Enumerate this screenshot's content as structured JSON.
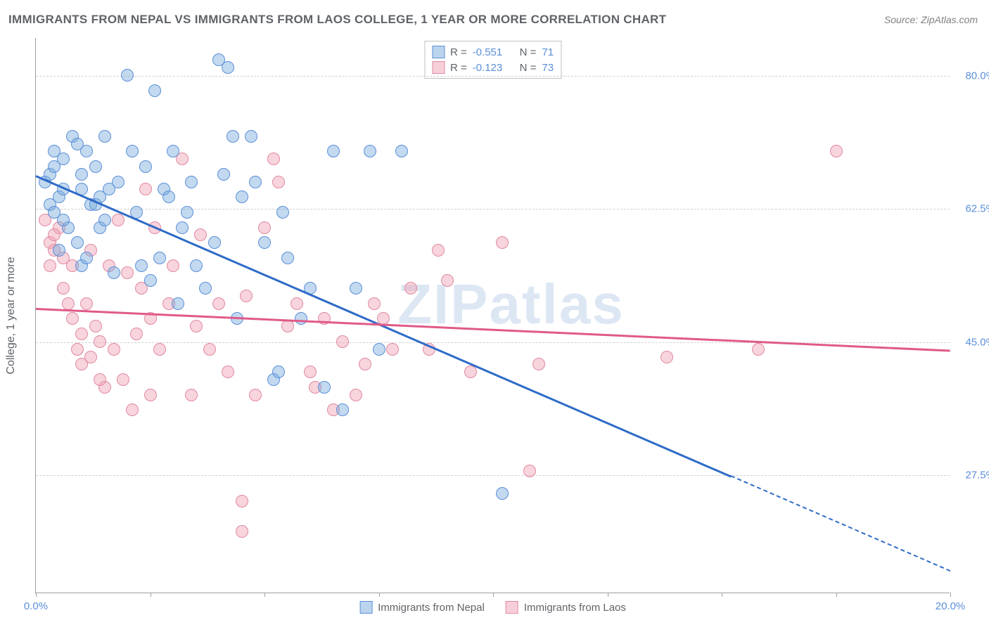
{
  "title": "IMMIGRANTS FROM NEPAL VS IMMIGRANTS FROM LAOS COLLEGE, 1 YEAR OR MORE CORRELATION CHART",
  "source": "Source: ZipAtlas.com",
  "watermark": "ZIPatlas",
  "chart": {
    "type": "scatter",
    "background_color": "#ffffff",
    "grid_color": "#d0d0d0",
    "axis_color": "#9aa0a6",
    "y_axis_title": "College, 1 year or more",
    "xlim": [
      0,
      20
    ],
    "ylim": [
      12,
      85
    ],
    "x_ticks": [
      0,
      2.5,
      5,
      7.5,
      10,
      12.5,
      15,
      17.5,
      20
    ],
    "x_tick_labels": {
      "0": "0.0%",
      "20": "20.0%"
    },
    "y_gridlines": [
      27.5,
      45.0,
      62.5,
      80.0
    ],
    "y_tick_labels": {
      "27.5": "27.5%",
      "45.0": "45.0%",
      "62.5": "62.5%",
      "80.0": "80.0%"
    },
    "marker_radius": 9,
    "series": {
      "nepal": {
        "label": "Immigrants from Nepal",
        "fill_color": "rgba(120,170,220,0.45)",
        "stroke_color": "#5b8fd9",
        "trend_color": "#2e6bc7",
        "R": "-0.551",
        "N": "71",
        "trend": {
          "x1": 0,
          "y1": 67,
          "x2": 15.2,
          "y2": 27.5,
          "dash_x2": 20,
          "dash_y2": 15
        },
        "points": [
          [
            0.2,
            66
          ],
          [
            0.3,
            67
          ],
          [
            0.3,
            63
          ],
          [
            0.4,
            68
          ],
          [
            0.5,
            64
          ],
          [
            0.4,
            62
          ],
          [
            0.6,
            65
          ],
          [
            0.6,
            69
          ],
          [
            0.8,
            72
          ],
          [
            0.9,
            71
          ],
          [
            1.0,
            65
          ],
          [
            1.0,
            55
          ],
          [
            1.1,
            70
          ],
          [
            1.2,
            63
          ],
          [
            1.3,
            68
          ],
          [
            1.4,
            60
          ],
          [
            1.5,
            72
          ],
          [
            1.6,
            65
          ],
          [
            1.7,
            54
          ],
          [
            1.8,
            66
          ],
          [
            2.0,
            80
          ],
          [
            2.1,
            70
          ],
          [
            2.2,
            62
          ],
          [
            2.3,
            55
          ],
          [
            2.4,
            68
          ],
          [
            2.5,
            53
          ],
          [
            2.6,
            78
          ],
          [
            2.8,
            65
          ],
          [
            3.0,
            70
          ],
          [
            3.2,
            60
          ],
          [
            3.3,
            62
          ],
          [
            3.5,
            55
          ],
          [
            3.7,
            52
          ],
          [
            4.0,
            82
          ],
          [
            4.2,
            81
          ],
          [
            4.3,
            72
          ],
          [
            4.5,
            64
          ],
          [
            4.7,
            72
          ],
          [
            5.0,
            58
          ],
          [
            5.2,
            40
          ],
          [
            5.3,
            41
          ],
          [
            5.5,
            56
          ],
          [
            5.8,
            48
          ],
          [
            6.0,
            52
          ],
          [
            6.3,
            39
          ],
          [
            6.5,
            70
          ],
          [
            6.7,
            36
          ],
          [
            7.0,
            52
          ],
          [
            7.3,
            70
          ],
          [
            7.5,
            44
          ],
          [
            8.0,
            70
          ],
          [
            10.2,
            25
          ],
          [
            0.5,
            57
          ],
          [
            0.7,
            60
          ],
          [
            0.9,
            58
          ],
          [
            1.1,
            56
          ],
          [
            1.3,
            63
          ],
          [
            1.5,
            61
          ],
          [
            2.7,
            56
          ],
          [
            3.1,
            50
          ],
          [
            3.9,
            58
          ],
          [
            4.4,
            48
          ],
          [
            4.8,
            66
          ],
          [
            5.4,
            62
          ],
          [
            0.4,
            70
          ],
          [
            1.0,
            67
          ],
          [
            1.4,
            64
          ],
          [
            0.6,
            61
          ],
          [
            2.9,
            64
          ],
          [
            3.4,
            66
          ],
          [
            4.1,
            67
          ]
        ]
      },
      "laos": {
        "label": "Immigrants from Laos",
        "fill_color": "rgba(240,160,180,0.45)",
        "stroke_color": "#e089a0",
        "trend_color": "#e05a88",
        "R": "-0.123",
        "N": "73",
        "trend": {
          "x1": 0,
          "y1": 49.5,
          "x2": 20,
          "y2": 44
        },
        "points": [
          [
            0.2,
            61
          ],
          [
            0.3,
            58
          ],
          [
            0.3,
            55
          ],
          [
            0.4,
            57
          ],
          [
            0.5,
            60
          ],
          [
            0.6,
            52
          ],
          [
            0.7,
            50
          ],
          [
            0.8,
            55
          ],
          [
            0.9,
            44
          ],
          [
            1.0,
            42
          ],
          [
            1.1,
            50
          ],
          [
            1.2,
            57
          ],
          [
            1.3,
            47
          ],
          [
            1.4,
            45
          ],
          [
            1.5,
            39
          ],
          [
            1.6,
            55
          ],
          [
            1.8,
            61
          ],
          [
            2.0,
            54
          ],
          [
            2.2,
            46
          ],
          [
            2.4,
            65
          ],
          [
            2.5,
            48
          ],
          [
            2.5,
            38
          ],
          [
            2.7,
            44
          ],
          [
            2.9,
            50
          ],
          [
            3.0,
            55
          ],
          [
            3.2,
            69
          ],
          [
            3.4,
            38
          ],
          [
            3.5,
            47
          ],
          [
            3.6,
            59
          ],
          [
            3.8,
            44
          ],
          [
            4.0,
            50
          ],
          [
            4.2,
            41
          ],
          [
            4.5,
            24
          ],
          [
            4.5,
            20
          ],
          [
            4.6,
            51
          ],
          [
            4.8,
            38
          ],
          [
            5.0,
            60
          ],
          [
            5.2,
            69
          ],
          [
            5.3,
            66
          ],
          [
            5.5,
            47
          ],
          [
            5.7,
            50
          ],
          [
            6.0,
            41
          ],
          [
            6.1,
            39
          ],
          [
            6.3,
            48
          ],
          [
            6.5,
            36
          ],
          [
            6.7,
            45
          ],
          [
            7.0,
            38
          ],
          [
            7.2,
            42
          ],
          [
            7.4,
            50
          ],
          [
            7.6,
            48
          ],
          [
            7.8,
            44
          ],
          [
            8.2,
            52
          ],
          [
            8.6,
            44
          ],
          [
            8.8,
            57
          ],
          [
            9.0,
            53
          ],
          [
            9.5,
            41
          ],
          [
            10.2,
            58
          ],
          [
            10.8,
            28
          ],
          [
            11.0,
            42
          ],
          [
            13.8,
            43
          ],
          [
            15.8,
            44
          ],
          [
            17.5,
            70
          ],
          [
            0.4,
            59
          ],
          [
            0.6,
            56
          ],
          [
            0.8,
            48
          ],
          [
            1.0,
            46
          ],
          [
            1.2,
            43
          ],
          [
            1.4,
            40
          ],
          [
            1.7,
            44
          ],
          [
            1.9,
            40
          ],
          [
            2.1,
            36
          ],
          [
            2.3,
            52
          ],
          [
            2.6,
            60
          ]
        ]
      }
    }
  },
  "legend_stat_labels": {
    "R": "R =",
    "N": "N ="
  }
}
